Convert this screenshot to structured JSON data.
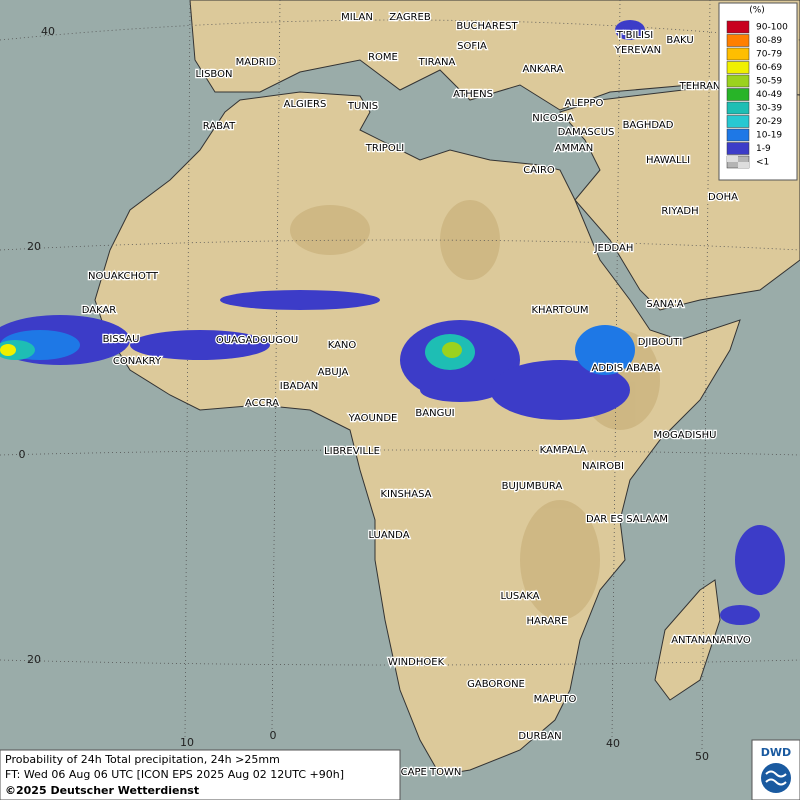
{
  "legend": {
    "unit": "(%)",
    "classes": [
      {
        "label": "90-100",
        "color": "#c8001e"
      },
      {
        "label": "80-89",
        "color": "#ff7f00"
      },
      {
        "label": "70-79",
        "color": "#ffbe00"
      },
      {
        "label": "60-69",
        "color": "#f0f000"
      },
      {
        "label": "50-59",
        "color": "#9bd21e"
      },
      {
        "label": "40-49",
        "color": "#28b428"
      },
      {
        "label": "30-39",
        "color": "#1ebeb4"
      },
      {
        "label": "20-29",
        "color": "#28c8d2"
      },
      {
        "label": "10-19",
        "color": "#1e78e6"
      },
      {
        "label": "1-9",
        "color": "#3c3cc8"
      },
      {
        "label": "<1",
        "color": "#b4b4b4"
      }
    ]
  },
  "cities": [
    "MILAN",
    "ZAGREB",
    "BUCHAREST",
    "T'BILISI",
    "BAKU",
    "SOFIA",
    "YEREVAN",
    "ROME",
    "TIRANA",
    "MADRID",
    "ANKARA",
    "LISBON",
    "TEHRAN",
    "ATHENS",
    "ALGIERS",
    "TUNIS",
    "ALEPPO",
    "NICOSIA",
    "RABAT",
    "BAGHDAD",
    "DAMASCUS",
    "TRIPOLI",
    "AMMAN",
    "HAWALLI",
    "CAIRO",
    "DOHA",
    "RIYADH",
    "JEDDAH",
    "NOUAKCHOTT",
    "SANA'A",
    "DAKAR",
    "KHARTOUM",
    "BISSAU",
    "OUAGADOUGOU",
    "KANO",
    "DJIBOUTI",
    "CONAKRY",
    "ABUJA",
    "ADDIS ABABA",
    "IBADAN",
    "ACCRA",
    "YAOUNDE",
    "BANGUI",
    "MOGADISHU",
    "LIBREVILLE",
    "KAMPALA",
    "NAIROBI",
    "KINSHASA",
    "BUJUMBURA",
    "DAR ES SALAAM",
    "LUANDA",
    "LUSAKA",
    "HARARE",
    "ANTANANARIVO",
    "WINDHOEK",
    "GABORONE",
    "MAPUTO",
    "DURBAN",
    "CAPE TOWN"
  ],
  "graticule_labels": {
    "lat": [
      "40",
      "20",
      "0",
      "20"
    ],
    "lon": [
      "10",
      "0",
      "40",
      "50"
    ]
  },
  "footer": {
    "line1": "Probability of 24h Total precipitation, 24h >25mm",
    "line2": "FT: Wed 06 Aug 06 UTC [ICON EPS 2025 Aug 02 12UTC +90h]",
    "copyright": "©2025 Deutscher Wetterdienst"
  },
  "logo": "DWD"
}
